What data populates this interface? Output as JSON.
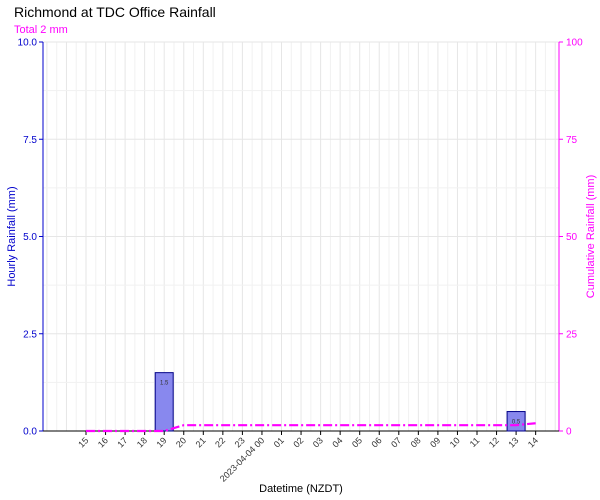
{
  "chart_data": {
    "type": "bar",
    "title": "Richmond at TDC Office Rainfall",
    "subtitle": "Total 2 mm",
    "xlabel": "Datetime (NZDT)",
    "ylabel_left": "Hourly Rainfall (mm)",
    "ylabel_right": "Cumulative Rainfall (mm)",
    "ylim_left": [
      0,
      10
    ],
    "ylim_right": [
      0,
      100
    ],
    "yticks_left": [
      "0.0",
      "2.5",
      "5.0",
      "7.5",
      "10.0"
    ],
    "yticks_right": [
      "0",
      "25",
      "50",
      "75",
      "100"
    ],
    "grid": true,
    "x_tick_labels": [
      "15",
      "16",
      "17",
      "18",
      "19",
      "20",
      "21",
      "22",
      "23",
      "2023-04-04 00",
      "01",
      "02",
      "03",
      "04",
      "05",
      "06",
      "07",
      "08",
      "09",
      "10",
      "11",
      "12",
      "13",
      "14"
    ],
    "series": [
      {
        "name": "Hourly Rainfall",
        "kind": "bar",
        "color": "#8888ee",
        "edge_color": "#000088",
        "points": [
          {
            "x": "19",
            "value": 1.5,
            "label": "1.5"
          },
          {
            "x": "13",
            "value": 0.5,
            "label": "0.5"
          }
        ]
      },
      {
        "name": "Cumulative Rainfall",
        "kind": "line",
        "style": "dash-dot",
        "color": "#ff00ff",
        "x": [
          "15",
          "16",
          "17",
          "18",
          "19",
          "20",
          "21",
          "22",
          "23",
          "2023-04-04 00",
          "01",
          "02",
          "03",
          "04",
          "05",
          "06",
          "07",
          "08",
          "09",
          "10",
          "11",
          "12",
          "13",
          "14"
        ],
        "values": [
          0,
          0,
          0,
          0,
          0,
          1.5,
          1.5,
          1.5,
          1.5,
          1.5,
          1.5,
          1.5,
          1.5,
          1.5,
          1.5,
          1.5,
          1.5,
          1.5,
          1.5,
          1.5,
          1.5,
          1.5,
          1.5,
          2
        ]
      }
    ],
    "colors": {
      "left_axis": "#0000cc",
      "right_axis": "#ff00ff",
      "grid": "#e6e6e6"
    }
  }
}
